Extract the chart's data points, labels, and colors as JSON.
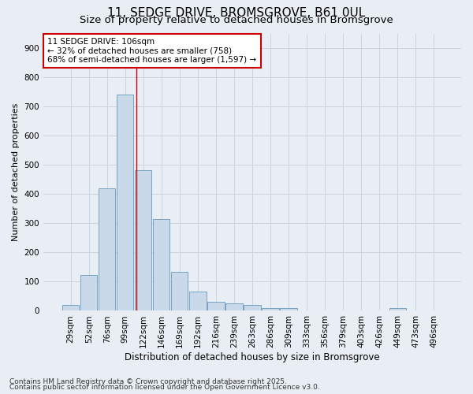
{
  "title1": "11, SEDGE DRIVE, BROMSGROVE, B61 0UL",
  "title2": "Size of property relative to detached houses in Bromsgrove",
  "xlabel": "Distribution of detached houses by size in Bromsgrove",
  "ylabel": "Number of detached properties",
  "categories": [
    "29sqm",
    "52sqm",
    "76sqm",
    "99sqm",
    "122sqm",
    "146sqm",
    "169sqm",
    "192sqm",
    "216sqm",
    "239sqm",
    "263sqm",
    "286sqm",
    "309sqm",
    "333sqm",
    "356sqm",
    "379sqm",
    "403sqm",
    "426sqm",
    "449sqm",
    "473sqm",
    "496sqm"
  ],
  "values": [
    20,
    122,
    420,
    742,
    483,
    315,
    133,
    65,
    30,
    25,
    20,
    10,
    8,
    0,
    0,
    0,
    0,
    0,
    8,
    0,
    0
  ],
  "bar_color": "#c9d9ea",
  "bar_edge_color": "#6699bb",
  "red_line_x": 3.62,
  "annotation_line1": "11 SEDGE DRIVE: 106sqm",
  "annotation_line2": "← 32% of detached houses are smaller (758)",
  "annotation_line3": "68% of semi-detached houses are larger (1,597) →",
  "annotation_box_color": "#ffffff",
  "annotation_box_edge": "#cc0000",
  "background_color": "#e8eef4",
  "grid_color": "#c8d4e0",
  "ylim": [
    0,
    950
  ],
  "yticks": [
    0,
    100,
    200,
    300,
    400,
    500,
    600,
    700,
    800,
    900
  ],
  "footer1": "Contains HM Land Registry data © Crown copyright and database right 2025.",
  "footer2": "Contains public sector information licensed under the Open Government Licence v3.0.",
  "title1_fontsize": 11,
  "title2_fontsize": 9.5,
  "xlabel_fontsize": 8.5,
  "ylabel_fontsize": 8,
  "tick_fontsize": 7.5,
  "annotation_fontsize": 7.5,
  "footer_fontsize": 6.5
}
